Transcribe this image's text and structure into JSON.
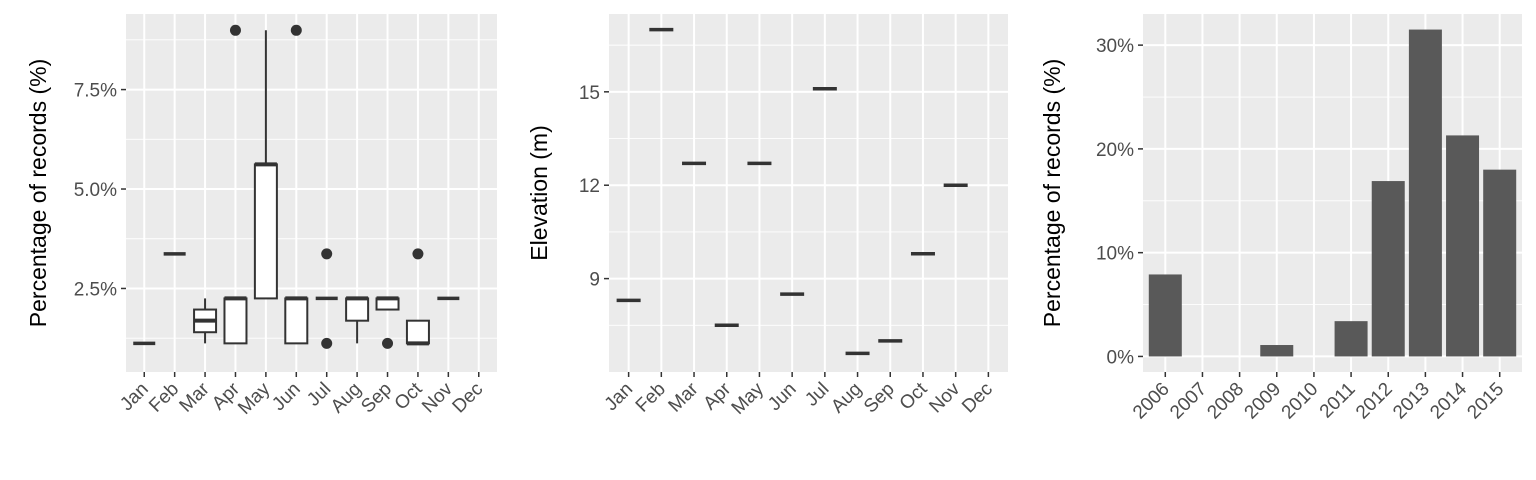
{
  "colors": {
    "panel": "#ebebeb",
    "grid_major": "#ffffff",
    "ink": "#333333",
    "bar": "#595959",
    "tick_text": "#4d4d4d"
  },
  "chart_data": [
    {
      "type": "boxplot",
      "title": "",
      "xlabel": "",
      "ylabel": "Percentage of records (%)",
      "categories": [
        "Jan",
        "Feb",
        "Mar",
        "Apr",
        "May",
        "Jun",
        "Jul",
        "Aug",
        "Sep",
        "Oct",
        "Nov",
        "Dec"
      ],
      "ylim": [
        0.4,
        9.4
      ],
      "yticks": [
        2.5,
        5.0,
        7.5
      ],
      "ytick_labels": [
        "2.5%",
        "5.0%",
        "7.5%"
      ],
      "grid": true,
      "boxes": [
        {
          "category": "Jan",
          "low": 1.12,
          "q1": 1.12,
          "median": 1.12,
          "q3": 1.12,
          "high": 1.12,
          "outliers": []
        },
        {
          "category": "Feb",
          "low": 3.37,
          "q1": 3.37,
          "median": 3.37,
          "q3": 3.37,
          "high": 3.37,
          "outliers": []
        },
        {
          "category": "Mar",
          "low": 1.12,
          "q1": 1.4,
          "median": 1.69,
          "q3": 1.97,
          "high": 2.25,
          "outliers": []
        },
        {
          "category": "Apr",
          "low": 1.12,
          "q1": 1.12,
          "median": 2.25,
          "q3": 2.25,
          "high": 2.25,
          "outliers": [
            8.99
          ]
        },
        {
          "category": "May",
          "low": 2.25,
          "q1": 2.25,
          "median": 5.62,
          "q3": 5.62,
          "high": 8.99,
          "outliers": []
        },
        {
          "category": "Jun",
          "low": 1.12,
          "q1": 1.12,
          "median": 2.25,
          "q3": 2.25,
          "high": 2.25,
          "outliers": [
            8.99
          ]
        },
        {
          "category": "Jul",
          "low": 2.25,
          "q1": 2.25,
          "median": 2.25,
          "q3": 2.25,
          "high": 2.25,
          "outliers": [
            3.37,
            1.12
          ]
        },
        {
          "category": "Aug",
          "low": 1.12,
          "q1": 1.69,
          "median": 2.25,
          "q3": 2.25,
          "high": 2.25,
          "outliers": []
        },
        {
          "category": "Sep",
          "low": 1.97,
          "q1": 1.97,
          "median": 2.25,
          "q3": 2.25,
          "high": 2.25,
          "outliers": [
            1.12
          ]
        },
        {
          "category": "Oct",
          "low": 1.12,
          "q1": 1.12,
          "median": 1.12,
          "q3": 1.69,
          "high": 1.69,
          "outliers": [
            3.37
          ]
        },
        {
          "category": "Nov",
          "low": 2.25,
          "q1": 2.25,
          "median": 2.25,
          "q3": 2.25,
          "high": 2.25,
          "outliers": []
        },
        {
          "category": "Dec",
          "empty": true
        }
      ]
    },
    {
      "type": "boxplot",
      "title": "",
      "xlabel": "",
      "ylabel": "Elevation (m)",
      "categories": [
        "Jan",
        "Feb",
        "Mar",
        "Apr",
        "May",
        "Jun",
        "Jul",
        "Aug",
        "Sep",
        "Oct",
        "Nov",
        "Dec"
      ],
      "ylim": [
        6.0,
        17.5
      ],
      "yticks": [
        9,
        12,
        15
      ],
      "ytick_labels": [
        "9",
        "12",
        "15"
      ],
      "grid": true,
      "boxes": [
        {
          "category": "Jan",
          "low": 8.3,
          "q1": 8.3,
          "median": 8.3,
          "q3": 8.3,
          "high": 8.3,
          "outliers": []
        },
        {
          "category": "Feb",
          "low": 17.0,
          "q1": 17.0,
          "median": 17.0,
          "q3": 17.0,
          "high": 17.0,
          "outliers": []
        },
        {
          "category": "Mar",
          "low": 12.7,
          "q1": 12.7,
          "median": 12.7,
          "q3": 12.7,
          "high": 12.7,
          "outliers": []
        },
        {
          "category": "Apr",
          "low": 7.5,
          "q1": 7.5,
          "median": 7.5,
          "q3": 7.5,
          "high": 7.5,
          "outliers": []
        },
        {
          "category": "May",
          "low": 12.7,
          "q1": 12.7,
          "median": 12.7,
          "q3": 12.7,
          "high": 12.7,
          "outliers": []
        },
        {
          "category": "Jun",
          "low": 8.5,
          "q1": 8.5,
          "median": 8.5,
          "q3": 8.5,
          "high": 8.5,
          "outliers": []
        },
        {
          "category": "Jul",
          "low": 15.1,
          "q1": 15.1,
          "median": 15.1,
          "q3": 15.1,
          "high": 15.1,
          "outliers": []
        },
        {
          "category": "Aug",
          "low": 6.6,
          "q1": 6.6,
          "median": 6.6,
          "q3": 6.6,
          "high": 6.6,
          "outliers": []
        },
        {
          "category": "Sep",
          "low": 7.0,
          "q1": 7.0,
          "median": 7.0,
          "q3": 7.0,
          "high": 7.0,
          "outliers": []
        },
        {
          "category": "Oct",
          "low": 9.8,
          "q1": 9.8,
          "median": 9.8,
          "q3": 9.8,
          "high": 9.8,
          "outliers": []
        },
        {
          "category": "Nov",
          "low": 12.0,
          "q1": 12.0,
          "median": 12.0,
          "q3": 12.0,
          "high": 12.0,
          "outliers": []
        },
        {
          "category": "Dec",
          "empty": true
        }
      ]
    },
    {
      "type": "bar",
      "title": "",
      "xlabel": "",
      "ylabel": "Percentage of records (%)",
      "categories": [
        "2006",
        "2007",
        "2008",
        "2009",
        "2010",
        "2011",
        "2012",
        "2013",
        "2014",
        "2015"
      ],
      "values": [
        7.9,
        0,
        0,
        1.1,
        0,
        3.4,
        16.9,
        31.5,
        21.3,
        18.0
      ],
      "ylim": [
        -1.5,
        33.0
      ],
      "yticks": [
        0,
        10,
        20,
        30
      ],
      "ytick_labels": [
        "0%",
        "10%",
        "20%",
        "30%"
      ],
      "grid": true
    }
  ]
}
